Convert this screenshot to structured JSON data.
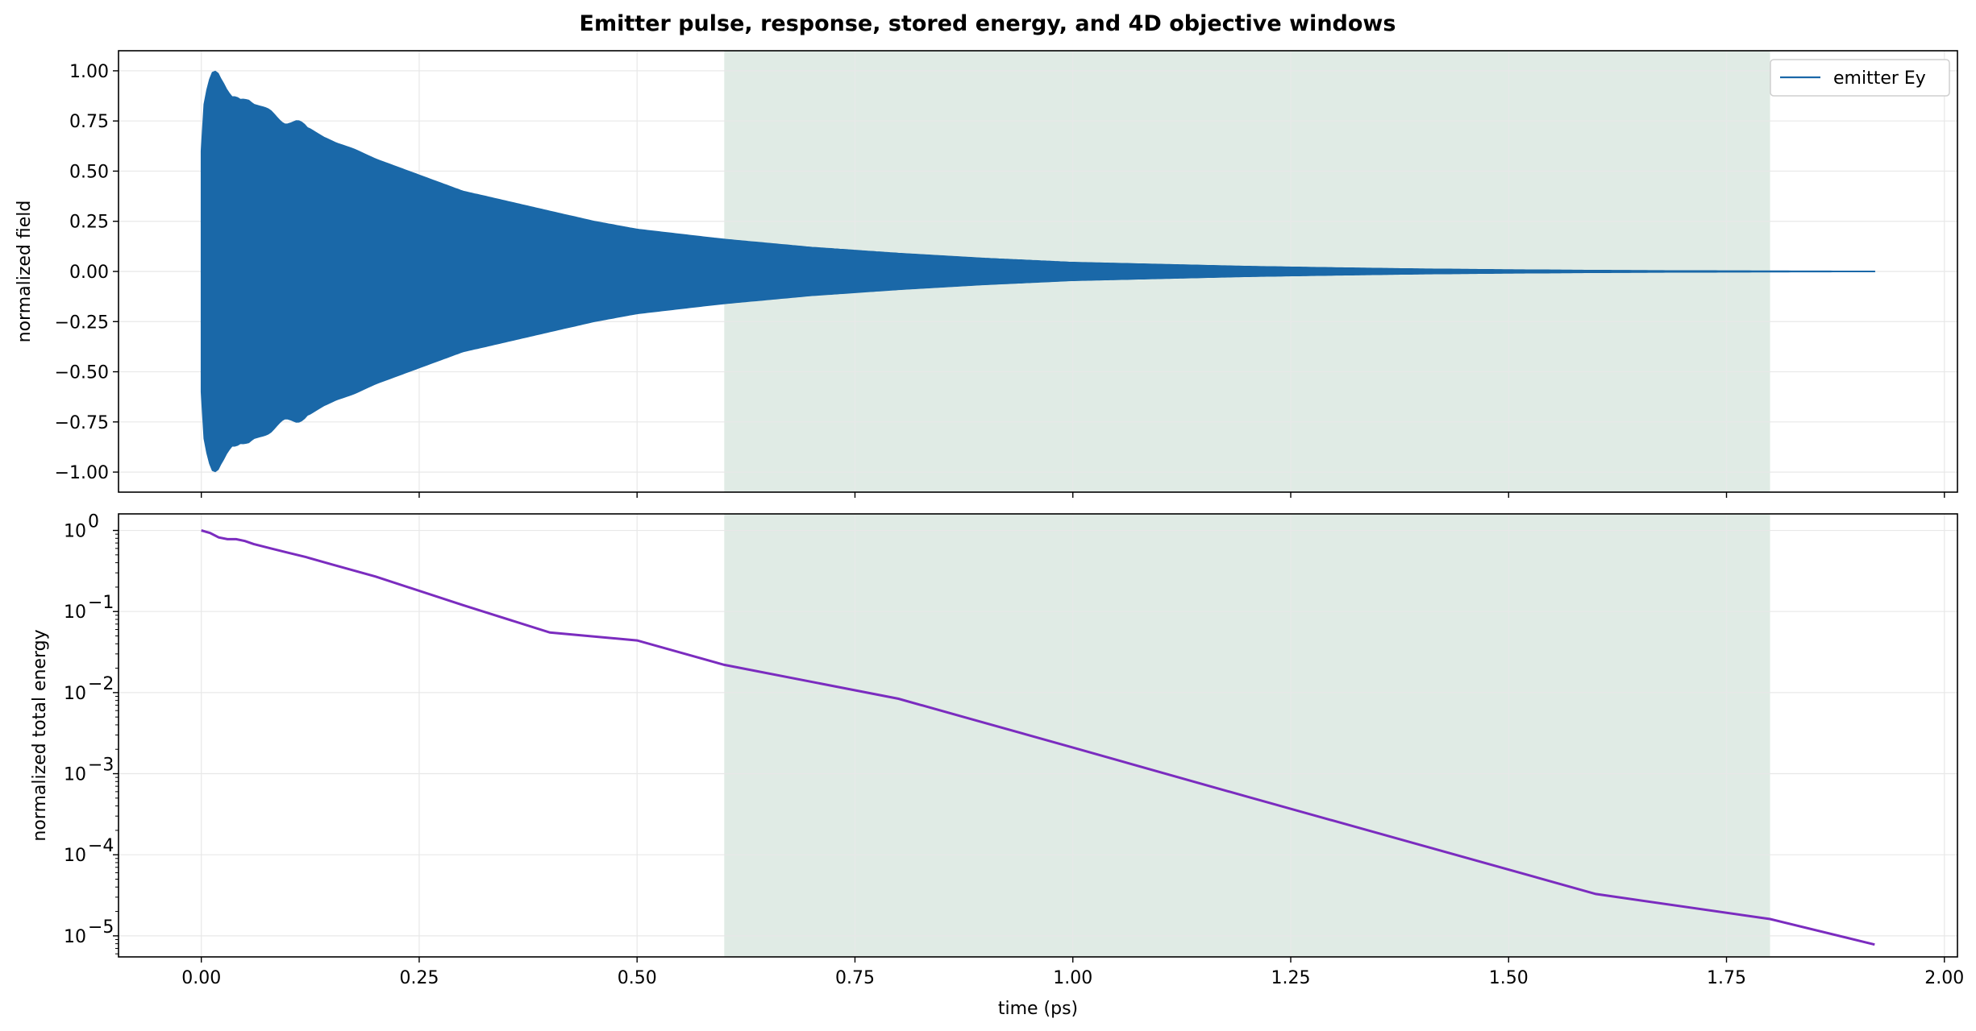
{
  "figure_title": "Emitter pulse, response, stored energy, and 4D objective windows",
  "colors": {
    "field": "#1a68a8",
    "energy": "#7b2cbf",
    "window": "#e0ebe5",
    "grid": "#e8e8e8"
  },
  "chart_data": [
    {
      "type": "line",
      "title": "",
      "xlabel": "",
      "ylabel": "normalized field",
      "xlim": [
        -0.095,
        2.015
      ],
      "ylim": [
        -1.1,
        1.1
      ],
      "grid": true,
      "legend": {
        "location": "top-right",
        "entries": [
          "emitter Ey"
        ]
      },
      "x_ticks": [
        0.0,
        0.25,
        0.5,
        0.75,
        1.0,
        1.25,
        1.5,
        1.75,
        2.0
      ],
      "y_ticks": [
        1.0,
        0.75,
        0.5,
        0.25,
        0.0,
        -0.25,
        -0.5,
        -0.75,
        -1.0
      ],
      "y_tick_labels": [
        "1.00",
        "0.75",
        "0.50",
        "0.25",
        "0.00",
        "−0.25",
        "−0.50",
        "−0.75",
        "−1.00"
      ],
      "shaded_window": {
        "x_start": 0.6,
        "x_end": 1.8
      },
      "series": [
        {
          "name": "emitter Ey",
          "kind": "oscillating field, envelope shown",
          "x": [
            0.0,
            0.003,
            0.008,
            0.013,
            0.018,
            0.025,
            0.035,
            0.045,
            0.055,
            0.065,
            0.075,
            0.085,
            0.095,
            0.11,
            0.125,
            0.14,
            0.155,
            0.175,
            0.2,
            0.25,
            0.3,
            0.35,
            0.4,
            0.45,
            0.5,
            0.55,
            0.6,
            0.7,
            0.8,
            0.9,
            1.0,
            1.1,
            1.2,
            1.3,
            1.4,
            1.5,
            1.6,
            1.7,
            1.8,
            1.92
          ],
          "envelope": [
            0.6,
            0.82,
            0.92,
            0.98,
            1.0,
            0.96,
            0.87,
            0.84,
            0.86,
            0.84,
            0.8,
            0.77,
            0.75,
            0.74,
            0.71,
            0.67,
            0.64,
            0.61,
            0.56,
            0.48,
            0.4,
            0.35,
            0.3,
            0.25,
            0.21,
            0.185,
            0.16,
            0.12,
            0.09,
            0.065,
            0.045,
            0.035,
            0.025,
            0.018,
            0.012,
            0.008,
            0.005,
            0.003,
            0.002,
            0.001
          ]
        }
      ]
    },
    {
      "type": "line",
      "title": "",
      "xlabel": "time (ps)",
      "ylabel": "normalized total energy",
      "xlim": [
        -0.095,
        2.015
      ],
      "ylim": [
        5.5e-06,
        1.6
      ],
      "y_scale": "log",
      "grid": true,
      "x_ticks": [
        0.0,
        0.25,
        0.5,
        0.75,
        1.0,
        1.25,
        1.5,
        1.75,
        2.0
      ],
      "x_tick_labels": [
        "0.00",
        "0.25",
        "0.50",
        "0.75",
        "1.00",
        "1.25",
        "1.50",
        "1.75",
        "2.00"
      ],
      "y_tick_exponents": [
        0,
        -1,
        -2,
        -3,
        -4,
        -5
      ],
      "shaded_window": {
        "x_start": 0.6,
        "x_end": 1.8
      },
      "series": [
        {
          "name": "",
          "x": [
            0.0,
            0.01,
            0.02,
            0.03,
            0.04,
            0.05,
            0.06,
            0.08,
            0.1,
            0.12,
            0.15,
            0.2,
            0.3,
            0.4,
            0.5,
            0.6,
            0.8,
            1.0,
            1.2,
            1.4,
            1.6,
            1.8,
            1.92
          ],
          "values": [
            1.0,
            0.93,
            0.82,
            0.78,
            0.78,
            0.74,
            0.68,
            0.6,
            0.53,
            0.47,
            0.38,
            0.27,
            0.12,
            0.055,
            0.044,
            0.022,
            0.0084,
            0.0021,
            0.00052,
            0.000131,
            3.28e-05,
            1.61e-05,
            7.8e-06
          ]
        }
      ]
    }
  ]
}
